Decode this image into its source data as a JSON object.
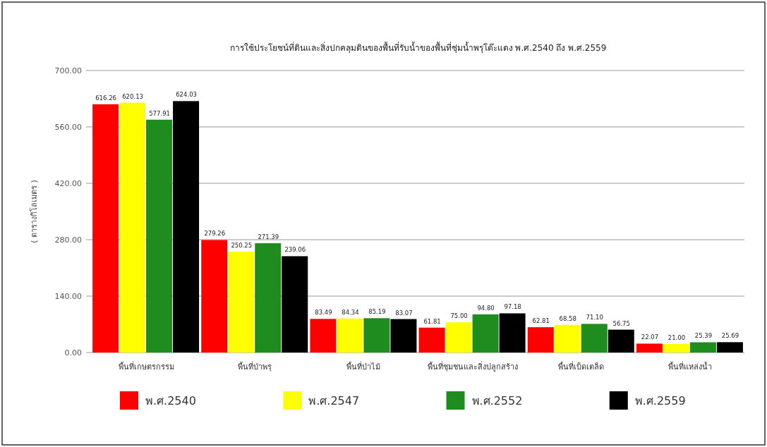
{
  "chart_data": {
    "type": "bar",
    "title": "การใช้ประโยชน์ที่ดินและสิ่งปกคลุมดินของพื้นที่รับน้ำของพื้นที่ชุ่มน้ำพรุโต๊ะแดง พ.ศ.2540 ถึง พ.ศ.2559",
    "ylabel": "( ตารางกิโลเมตร )",
    "categories": [
      "พื้นที่เกษตรกรรม",
      "พื้นที่ป่าพรุ",
      "พื้นที่ป่าไม้",
      "พื้นที่ชุมชนและสิ่งปลูกสร้าง",
      "พื้นที่เบ็ดเตล็ด",
      "พื้นที่แหล่งน้ำ"
    ],
    "series": [
      {
        "name": "พ.ศ.2540",
        "color": "#ff0000",
        "values": [
          616.26,
          279.26,
          83.49,
          61.81,
          62.81,
          22.07
        ],
        "value_labels": [
          "616.26",
          "279.26",
          "83.49",
          "61.81",
          "62.81",
          "22.07"
        ]
      },
      {
        "name": "พ.ศ.2547",
        "color": "#ffff00",
        "values": [
          620.13,
          250.25,
          84.34,
          75.0,
          68.58,
          21.0
        ],
        "value_labels": [
          "620.13",
          "250.25",
          "84.34",
          "75.00",
          "68.58",
          "21.00"
        ]
      },
      {
        "name": "พ.ศ.2552",
        "color": "#1e8c1e",
        "values": [
          577.91,
          271.39,
          85.19,
          94.8,
          71.1,
          25.39
        ],
        "value_labels": [
          "577.91",
          "271.39",
          "85.19",
          "94.80",
          "71.10",
          "25.39"
        ]
      },
      {
        "name": "พ.ศ.2559",
        "color": "#000000",
        "values": [
          624.03,
          239.06,
          83.07,
          97.18,
          56.75,
          25.69
        ],
        "value_labels": [
          "624.03",
          "239.06",
          "83.07",
          "97.18",
          "56.75",
          "25.69"
        ]
      }
    ],
    "ylim": [
      0,
      700
    ],
    "yticks": [
      {
        "value": 0,
        "label": "0.00"
      },
      {
        "value": 140,
        "label": "140.00"
      },
      {
        "value": 280,
        "label": "280.00"
      },
      {
        "value": 420,
        "label": "420.00"
      },
      {
        "value": 560,
        "label": "560.00"
      },
      {
        "value": 700,
        "label": "700.00"
      }
    ],
    "grid": "y",
    "legend": "bottom"
  }
}
